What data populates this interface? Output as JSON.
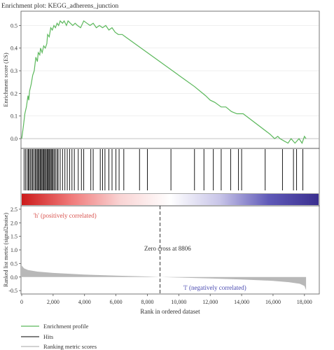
{
  "chart_data": {
    "type": "line",
    "title": "Enrichment plot: KEGG_adherens_junction",
    "xlabel": "Rank in ordered dataset",
    "x_ticks": [
      "0",
      "2,000",
      "4,000",
      "6,000",
      "8,000",
      "10,000",
      "12,000",
      "14,000",
      "16,000",
      "18,000"
    ],
    "xlim": [
      0,
      18900
    ],
    "es_panel": {
      "ylabel": "Enrichment score (ES)",
      "ylim": [
        -0.04,
        0.56
      ],
      "y_ticks": [
        "0.0",
        "0.1",
        "0.2",
        "0.3",
        "0.4",
        "0.5"
      ],
      "series": {
        "name": "Enrichment profile",
        "color": "#5cb85c",
        "points": [
          [
            0,
            0
          ],
          [
            100,
            0.05
          ],
          [
            200,
            0.11
          ],
          [
            300,
            0.14
          ],
          [
            400,
            0.19
          ],
          [
            450,
            0.17
          ],
          [
            500,
            0.21
          ],
          [
            600,
            0.24
          ],
          [
            700,
            0.28
          ],
          [
            800,
            0.3
          ],
          [
            900,
            0.36
          ],
          [
            1000,
            0.34
          ],
          [
            1050,
            0.38
          ],
          [
            1150,
            0.37
          ],
          [
            1200,
            0.4
          ],
          [
            1300,
            0.38
          ],
          [
            1400,
            0.41
          ],
          [
            1500,
            0.4
          ],
          [
            1600,
            0.42
          ],
          [
            1650,
            0.46
          ],
          [
            1750,
            0.45
          ],
          [
            1850,
            0.49
          ],
          [
            1950,
            0.48
          ],
          [
            2050,
            0.5
          ],
          [
            2150,
            0.49
          ],
          [
            2250,
            0.51
          ],
          [
            2350,
            0.5
          ],
          [
            2450,
            0.52
          ],
          [
            2600,
            0.51
          ],
          [
            2700,
            0.52
          ],
          [
            2850,
            0.5
          ],
          [
            2950,
            0.52
          ],
          [
            3100,
            0.51
          ],
          [
            3250,
            0.5
          ],
          [
            3400,
            0.51
          ],
          [
            3550,
            0.5
          ],
          [
            3750,
            0.49
          ],
          [
            3950,
            0.52
          ],
          [
            4150,
            0.51
          ],
          [
            4350,
            0.5
          ],
          [
            4550,
            0.51
          ],
          [
            4750,
            0.49
          ],
          [
            4950,
            0.5
          ],
          [
            5150,
            0.49
          ],
          [
            5350,
            0.5
          ],
          [
            5550,
            0.48
          ],
          [
            5750,
            0.49
          ],
          [
            5950,
            0.47
          ],
          [
            6150,
            0.46
          ],
          [
            6400,
            0.46
          ],
          [
            6600,
            0.45
          ],
          [
            8600,
            0.35
          ],
          [
            10400,
            0.26
          ],
          [
            11000,
            0.23
          ],
          [
            11700,
            0.19
          ],
          [
            12000,
            0.17
          ],
          [
            12300,
            0.16
          ],
          [
            12700,
            0.14
          ],
          [
            13000,
            0.14
          ],
          [
            13350,
            0.12
          ],
          [
            13700,
            0.11
          ],
          [
            14100,
            0.11
          ],
          [
            15800,
            0.02
          ],
          [
            16100,
            0.0
          ],
          [
            16300,
            0.01
          ],
          [
            16450,
            0.0
          ],
          [
            16700,
            -0.01
          ],
          [
            16950,
            -0.02
          ],
          [
            17150,
            0.0
          ],
          [
            17400,
            -0.02
          ],
          [
            17650,
            0.0
          ],
          [
            17850,
            -0.02
          ],
          [
            18000,
            0.01
          ],
          [
            18100,
            0.0
          ]
        ]
      }
    },
    "hits_panel": {
      "name": "Hits",
      "color": "#000000",
      "positions": [
        150,
        250,
        350,
        430,
        480,
        560,
        640,
        700,
        780,
        860,
        920,
        990,
        1050,
        1110,
        1170,
        1230,
        1290,
        1350,
        1410,
        1470,
        1520,
        1600,
        1650,
        1700,
        1760,
        1830,
        1880,
        1950,
        2000,
        2080,
        2150,
        2250,
        2320,
        2450,
        2600,
        2750,
        2900,
        3050,
        3200,
        3350,
        3600,
        3800,
        3950,
        4400,
        4550,
        5000,
        5150,
        5300,
        5550,
        5750,
        6000,
        6200,
        6500,
        7500,
        8000,
        9500,
        11000,
        11600,
        12200,
        12700,
        13300,
        13800,
        14000,
        15500,
        16600,
        17300,
        17500,
        17900
      ],
      "gradient": [
        "#cc1a1a",
        "#f07a7a",
        "#f9d4d4",
        "#ffffff",
        "#c8c5e8",
        "#5f59b8",
        "#3a2f8f"
      ]
    },
    "metric_panel": {
      "ylabel": "Ranked list metric (signal2noise)",
      "ylim": [
        -0.6,
        2.6
      ],
      "y_ticks": [
        "-0.5",
        "0.0",
        "0.5",
        "1.0",
        "1.5",
        "2.0",
        "2.5"
      ],
      "series": {
        "name": "Ranking metric scores",
        "color": "#b8b8b8",
        "points": [
          [
            0,
            0.42
          ],
          [
            150,
            0.32
          ],
          [
            400,
            0.26
          ],
          [
            1000,
            0.2
          ],
          [
            2000,
            0.15
          ],
          [
            4000,
            0.09
          ],
          [
            6000,
            0.05
          ],
          [
            8000,
            0.02
          ],
          [
            8806,
            0.0
          ],
          [
            10000,
            -0.02
          ],
          [
            12000,
            -0.05
          ],
          [
            14000,
            -0.09
          ],
          [
            16000,
            -0.14
          ],
          [
            17000,
            -0.19
          ],
          [
            17700,
            -0.25
          ],
          [
            18000,
            -0.33
          ],
          [
            18100,
            -0.48
          ]
        ]
      },
      "zero_cross_label": "Zero cross at 8806",
      "zero_cross_x": 8806,
      "pos_label": "'h' (positively correlated)",
      "neg_label": "'l' (negatively correlated)",
      "pos_color": "#d9534f",
      "neg_color": "#4a4ab0"
    },
    "legend": {
      "placement": "bottom-left",
      "entries": [
        "Enrichment profile",
        "Hits",
        "Ranking metric scores"
      ]
    }
  }
}
